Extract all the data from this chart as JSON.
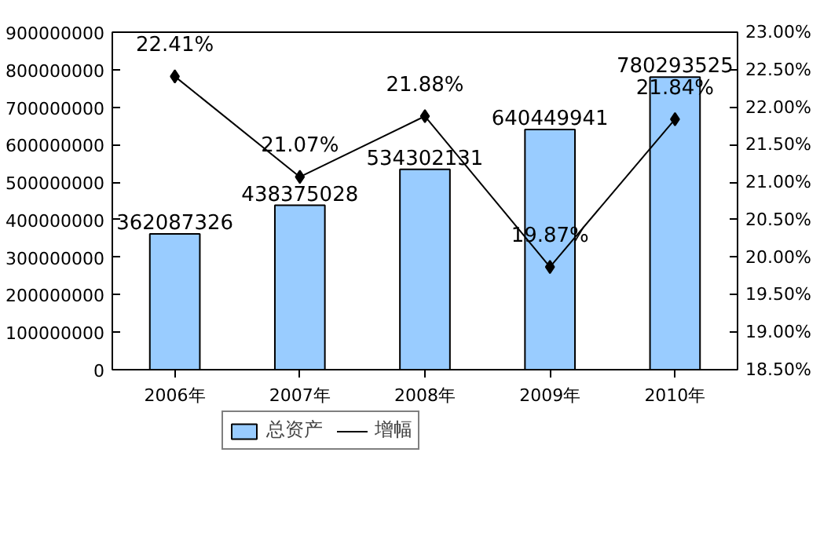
{
  "chart_data": {
    "type": "bar",
    "categories": [
      "2006年",
      "2007年",
      "2008年",
      "2009年",
      "2010年"
    ],
    "series": [
      {
        "name": "总资产",
        "type": "bar",
        "color": "#99ccff",
        "values": [
          362087326,
          438375028,
          534302131,
          640449941,
          780293525
        ],
        "value_labels": [
          "362087326",
          "438375028",
          "534302131",
          "640449941",
          "780293525"
        ]
      },
      {
        "name": "增幅",
        "type": "line",
        "axis": "y2",
        "color": "#000000",
        "marker": "diamond",
        "values": [
          22.41,
          21.07,
          21.88,
          19.87,
          21.84
        ],
        "value_labels": [
          "22.41%",
          "21.07%",
          "21.88%",
          "19.87%",
          "21.84%"
        ]
      }
    ],
    "ylim": [
      0,
      900000000
    ],
    "yticks": [
      0,
      100000000,
      200000000,
      300000000,
      400000000,
      500000000,
      600000000,
      700000000,
      800000000,
      900000000
    ],
    "y2lim": [
      18.5,
      23
    ],
    "y2ticks": [
      {
        "value": 18.5,
        "label": "18.50%"
      },
      {
        "value": 19,
        "label": "19.00%"
      },
      {
        "value": 19.5,
        "label": "19.50%"
      },
      {
        "value": 20,
        "label": "20.00%"
      },
      {
        "value": 20.5,
        "label": "20.50%"
      },
      {
        "value": 21,
        "label": "21.00%"
      },
      {
        "value": 21.5,
        "label": "21.50%"
      },
      {
        "value": 22,
        "label": "22.00%"
      },
      {
        "value": 22.5,
        "label": "22.50%"
      },
      {
        "value": 23,
        "label": "23.00%"
      }
    ],
    "legend": "bottom",
    "grid": false
  }
}
